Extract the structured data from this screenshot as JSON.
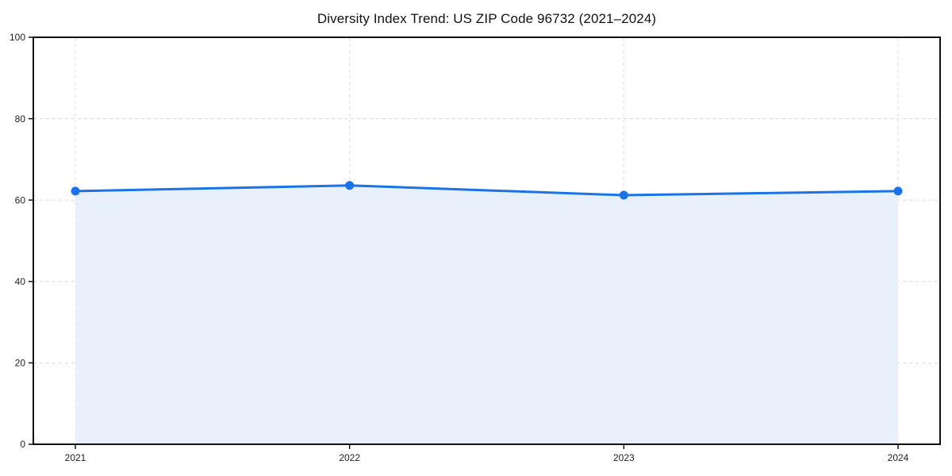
{
  "chart_data": {
    "type": "line",
    "title": "Diversity Index Trend: US ZIP Code 96732 (2021–2024)",
    "categories": [
      "2021",
      "2022",
      "2023",
      "2024"
    ],
    "values": [
      62.2,
      63.6,
      61.2,
      62.2
    ],
    "xlabel": "",
    "ylabel": "",
    "ylim": [
      0,
      100
    ],
    "yticks": [
      0,
      20,
      40,
      60,
      80,
      100
    ],
    "grid": "dashed",
    "legend": "none",
    "area_fill": true,
    "markers": true,
    "colors": {
      "line": "#1a73e8",
      "marker": "#1a73e8",
      "area_fill": "#e8f0fc",
      "grid": "#dcdcdc",
      "spine": "#111111",
      "tick": "#111111",
      "tick_label": "#222222",
      "title": "#111111",
      "background": "#ffffff"
    }
  }
}
